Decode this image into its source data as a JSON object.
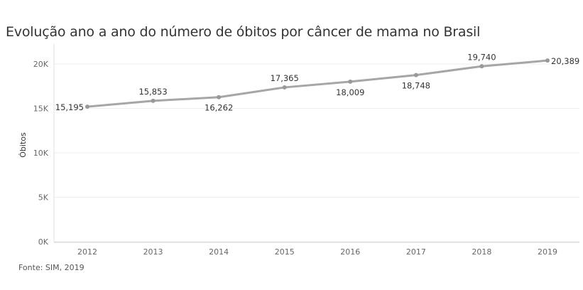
{
  "chart_data": {
    "type": "line",
    "title": "Evolução ano a ano do número de óbitos por câncer de mama no Brasil",
    "xlabel": "",
    "ylabel": "Óbitos",
    "categories": [
      "2012",
      "2013",
      "2014",
      "2015",
      "2016",
      "2017",
      "2018",
      "2019"
    ],
    "series": [
      {
        "values": [
          15195,
          15853,
          16262,
          17365,
          18009,
          18748,
          19740,
          20389
        ],
        "labels": [
          "15,195",
          "15,853",
          "16,262",
          "17,365",
          "18,009",
          "18,748",
          "19,740",
          "20,389"
        ],
        "color": "#a6a6a6"
      }
    ],
    "ylim": [
      0,
      20000
    ],
    "yticks": [
      {
        "value": 0,
        "label": "0K"
      },
      {
        "value": 5000,
        "label": "5K"
      },
      {
        "value": 10000,
        "label": "10K"
      },
      {
        "value": 15000,
        "label": "15K"
      },
      {
        "value": 20000,
        "label": "20K"
      }
    ],
    "grid": true,
    "source": "Fonte: SIM, 2019"
  }
}
